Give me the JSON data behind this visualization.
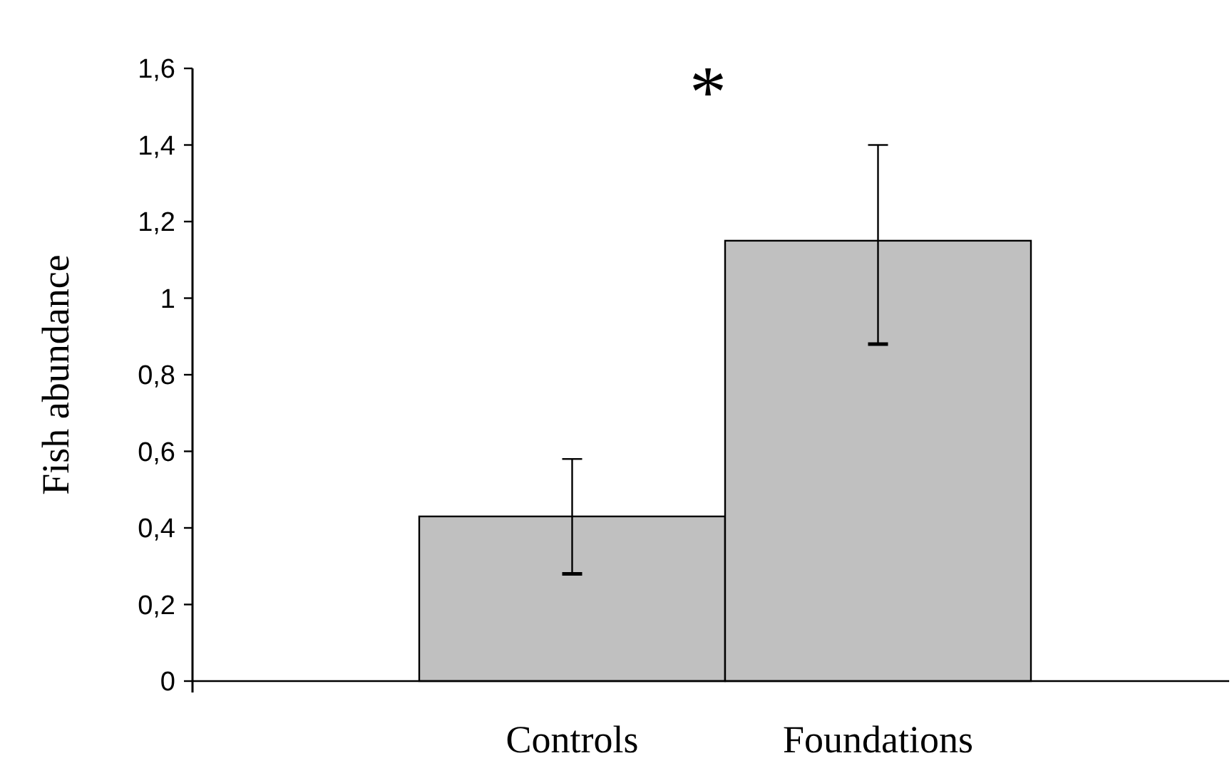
{
  "chart_data": {
    "type": "bar",
    "ylabel": "Fish abundance",
    "categories": [
      "Controls",
      "Foundations"
    ],
    "values": [
      0.43,
      1.15
    ],
    "color": "#c0c0c0",
    "errors": [
      [
        0.28,
        0.58
      ],
      [
        0.88,
        1.4
      ]
    ],
    "ylim": [
      0,
      1.6
    ],
    "yticks": [
      0,
      {
        "value": 0.2,
        "label": "0,2"
      },
      {
        "value": 0.4,
        "label": "0,4"
      },
      {
        "value": 0.6,
        "label": "0,6"
      },
      {
        "value": 0.8,
        "label": "0,8"
      },
      1,
      {
        "value": 1.2,
        "label": "1,2"
      },
      {
        "value": 1.4,
        "label": "1,4"
      },
      {
        "value": 1.6,
        "label": "1,6"
      }
    ],
    "grid": false,
    "annotations": [
      "*"
    ]
  }
}
